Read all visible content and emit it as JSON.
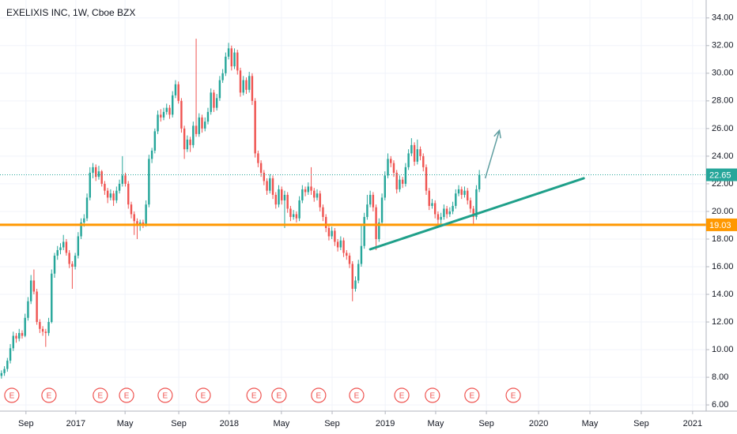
{
  "chart_data": {
    "type": "candlestick",
    "title": "EXELIXIS INC, 1W, Cboe BZX",
    "up_color": "#26a69a",
    "down_color": "#ef5350",
    "xlim": [
      0,
      239.4
    ],
    "xticks": [
      {
        "value": 8.8,
        "label": "Sep"
      },
      {
        "value": 25.7,
        "label": "2017"
      },
      {
        "value": 42.4,
        "label": "May"
      },
      {
        "value": 60.6,
        "label": "Sep"
      },
      {
        "value": 77.7,
        "label": "2018"
      },
      {
        "value": 95.4,
        "label": "May"
      },
      {
        "value": 112.6,
        "label": "Sep"
      },
      {
        "value": 130.6,
        "label": "2019"
      },
      {
        "value": 147.7,
        "label": "May"
      },
      {
        "value": 164.9,
        "label": "Sep"
      },
      {
        "value": 182.6,
        "label": "2020"
      },
      {
        "value": 200,
        "label": "May"
      },
      {
        "value": 217.4,
        "label": "Sep"
      },
      {
        "value": 234.8,
        "label": "2021"
      }
    ],
    "ylim": [
      5.55,
      35.3
    ],
    "yticks": [
      {
        "value": 6,
        "label": "6.00"
      },
      {
        "value": 8,
        "label": "8.00"
      },
      {
        "value": 10,
        "label": "10.00"
      },
      {
        "value": 12,
        "label": "12.00"
      },
      {
        "value": 14,
        "label": "14.00"
      },
      {
        "value": 16,
        "label": "16.00"
      },
      {
        "value": 18,
        "label": "18.00"
      },
      {
        "value": 20,
        "label": "20.00"
      },
      {
        "value": 22,
        "label": "22.00"
      },
      {
        "value": 24,
        "label": "24.00"
      },
      {
        "value": 26,
        "label": "26.00"
      },
      {
        "value": 28,
        "label": "28.00"
      },
      {
        "value": 30,
        "label": "30.00"
      },
      {
        "value": 32,
        "label": "32.00"
      },
      {
        "value": 34,
        "label": "34.00"
      }
    ],
    "grid": true,
    "price_lines": [
      {
        "value": 19.03,
        "color": "#ff9800",
        "style": "solid"
      },
      {
        "value": 22.65,
        "color": "#26a69a",
        "style": "dotted"
      }
    ],
    "trendline": {
      "x": [
        125.5,
        197.9
      ],
      "y": [
        17.26,
        22.4
      ],
      "color": "#1fa08a"
    },
    "arrow": {
      "x": [
        164.5,
        169.3
      ],
      "y": [
        22.4,
        25.86
      ],
      "color": "#5f9ea0"
    },
    "events": [
      {
        "x": 4.0,
        "label": "E"
      },
      {
        "x": 16.6,
        "label": "E"
      },
      {
        "x": 34.0,
        "label": "E"
      },
      {
        "x": 42.9,
        "label": "E"
      },
      {
        "x": 56.0,
        "label": "E"
      },
      {
        "x": 68.9,
        "label": "E"
      },
      {
        "x": 86.1,
        "label": "E"
      },
      {
        "x": 94.6,
        "label": "E"
      },
      {
        "x": 108.0,
        "label": "E"
      },
      {
        "x": 120.9,
        "label": "E"
      },
      {
        "x": 136.2,
        "label": "E"
      },
      {
        "x": 146.6,
        "label": "E"
      },
      {
        "x": 160.0,
        "label": "E"
      },
      {
        "x": 174.0,
        "label": "E"
      }
    ],
    "candles": [
      [
        8.1,
        8.5,
        7.9,
        8.3
      ],
      [
        8.3,
        8.8,
        8.1,
        8.6
      ],
      [
        8.6,
        9.4,
        8.4,
        9.2
      ],
      [
        9.2,
        10.4,
        9.0,
        10.1
      ],
      [
        10.1,
        11.3,
        9.9,
        11.0
      ],
      [
        11.0,
        11.2,
        10.5,
        10.8
      ],
      [
        10.8,
        11.5,
        10.6,
        11.2
      ],
      [
        11.2,
        11.4,
        10.8,
        11.0
      ],
      [
        11.0,
        12.6,
        10.9,
        12.3
      ],
      [
        12.3,
        13.8,
        12.1,
        13.5
      ],
      [
        13.5,
        15.4,
        13.3,
        15.0
      ],
      [
        15.0,
        15.8,
        14.0,
        14.2
      ],
      [
        14.2,
        14.4,
        11.8,
        12.0
      ],
      [
        12.0,
        12.2,
        11.2,
        11.5
      ],
      [
        11.5,
        11.7,
        11.0,
        11.3
      ],
      [
        11.3,
        11.5,
        10.2,
        11.2
      ],
      [
        11.2,
        12.3,
        11.0,
        12.0
      ],
      [
        12.0,
        15.8,
        11.9,
        15.5
      ],
      [
        15.5,
        17.0,
        15.2,
        16.8
      ],
      [
        16.8,
        17.5,
        16.5,
        17.2
      ],
      [
        17.2,
        17.7,
        16.9,
        17.4
      ],
      [
        17.4,
        18.3,
        17.2,
        17.8
      ],
      [
        17.8,
        18.0,
        16.8,
        17.0
      ],
      [
        17.0,
        17.2,
        15.9,
        16.2
      ],
      [
        16.2,
        16.4,
        14.4,
        16.0
      ],
      [
        16.0,
        17.0,
        15.8,
        16.8
      ],
      [
        16.8,
        18.5,
        16.6,
        18.2
      ],
      [
        18.2,
        19.5,
        18.0,
        19.2
      ],
      [
        19.2,
        19.8,
        18.9,
        19.5
      ],
      [
        19.5,
        21.3,
        19.3,
        21.0
      ],
      [
        21.0,
        23.2,
        20.8,
        22.8
      ],
      [
        22.8,
        23.5,
        22.4,
        23.2
      ],
      [
        23.2,
        23.4,
        22.2,
        22.5
      ],
      [
        22.5,
        23.3,
        22.3,
        22.9
      ],
      [
        22.9,
        23.0,
        21.8,
        22.0
      ],
      [
        22.0,
        22.2,
        21.2,
        21.5
      ],
      [
        21.5,
        21.7,
        20.6,
        21.0
      ],
      [
        21.0,
        21.6,
        20.8,
        21.3
      ],
      [
        21.3,
        21.5,
        20.4,
        20.8
      ],
      [
        20.8,
        21.8,
        20.6,
        21.5
      ],
      [
        21.5,
        22.3,
        21.3,
        22.0
      ],
      [
        22.0,
        24.0,
        21.8,
        22.6
      ],
      [
        22.6,
        22.8,
        21.8,
        22.0
      ],
      [
        22.0,
        22.2,
        20.2,
        20.5
      ],
      [
        20.5,
        20.7,
        19.5,
        19.8
      ],
      [
        19.8,
        20.0,
        18.3,
        19.3
      ],
      [
        19.3,
        19.5,
        18.0,
        19.0
      ],
      [
        19.0,
        19.4,
        18.6,
        19.2
      ],
      [
        19.2,
        19.4,
        18.8,
        19.1
      ],
      [
        19.1,
        20.8,
        18.9,
        20.5
      ],
      [
        20.5,
        24.1,
        20.3,
        23.8
      ],
      [
        23.8,
        24.6,
        23.5,
        24.4
      ],
      [
        24.4,
        26.0,
        24.2,
        25.8
      ],
      [
        25.8,
        27.3,
        25.6,
        27.0
      ],
      [
        27.0,
        27.4,
        26.5,
        26.8
      ],
      [
        26.8,
        27.5,
        26.6,
        27.2
      ],
      [
        27.2,
        27.8,
        27.0,
        27.5
      ],
      [
        27.5,
        27.7,
        26.7,
        27.0
      ],
      [
        27.0,
        28.7,
        26.8,
        28.4
      ],
      [
        28.4,
        29.5,
        28.2,
        29.2
      ],
      [
        29.2,
        29.4,
        27.8,
        28.0
      ],
      [
        28.0,
        28.2,
        25.7,
        26.0
      ],
      [
        26.0,
        26.2,
        23.8,
        24.5
      ],
      [
        24.5,
        25.5,
        24.3,
        25.2
      ],
      [
        25.2,
        25.4,
        24.3,
        24.8
      ],
      [
        24.8,
        26.5,
        24.6,
        26.2
      ],
      [
        26.2,
        32.5,
        25.4,
        25.6
      ],
      [
        25.6,
        27.1,
        25.4,
        26.8
      ],
      [
        26.8,
        27.0,
        25.7,
        26.0
      ],
      [
        26.0,
        26.8,
        25.8,
        26.5
      ],
      [
        26.5,
        27.5,
        26.3,
        27.2
      ],
      [
        27.2,
        28.9,
        27.0,
        28.6
      ],
      [
        28.6,
        28.8,
        27.2,
        27.5
      ],
      [
        27.5,
        28.5,
        27.3,
        28.2
      ],
      [
        28.2,
        29.8,
        28.0,
        29.5
      ],
      [
        29.5,
        30.3,
        29.3,
        30.0
      ],
      [
        30.0,
        31.5,
        29.8,
        31.2
      ],
      [
        31.2,
        32.2,
        31.0,
        31.8
      ],
      [
        31.8,
        32.0,
        30.2,
        30.5
      ],
      [
        30.5,
        31.8,
        30.3,
        31.5
      ],
      [
        31.5,
        31.7,
        29.9,
        30.2
      ],
      [
        30.2,
        30.4,
        28.3,
        28.6
      ],
      [
        28.6,
        29.8,
        28.4,
        29.5
      ],
      [
        29.5,
        29.7,
        28.5,
        28.8
      ],
      [
        28.8,
        30.1,
        28.6,
        29.8
      ],
      [
        29.8,
        30.0,
        27.7,
        28.0
      ],
      [
        28.0,
        28.2,
        23.9,
        24.2
      ],
      [
        24.2,
        24.4,
        23.2,
        23.5
      ],
      [
        23.5,
        23.7,
        22.5,
        22.8
      ],
      [
        22.8,
        23.0,
        21.9,
        22.2
      ],
      [
        22.2,
        22.4,
        21.2,
        21.5
      ],
      [
        21.5,
        22.7,
        21.3,
        22.4
      ],
      [
        22.4,
        22.6,
        20.9,
        21.2
      ],
      [
        21.2,
        21.4,
        20.2,
        20.5
      ],
      [
        20.5,
        21.9,
        20.3,
        21.6
      ],
      [
        21.6,
        21.8,
        20.5,
        20.8
      ],
      [
        20.8,
        21.5,
        18.8,
        21.2
      ],
      [
        21.2,
        21.4,
        19.9,
        20.2
      ],
      [
        20.2,
        20.4,
        19.3,
        19.6
      ],
      [
        19.6,
        20.1,
        19.4,
        19.8
      ],
      [
        19.8,
        20.0,
        19.2,
        19.5
      ],
      [
        19.5,
        21.1,
        19.3,
        20.8
      ],
      [
        20.8,
        21.9,
        20.6,
        21.6
      ],
      [
        21.6,
        21.8,
        21.1,
        21.4
      ],
      [
        21.4,
        22.1,
        21.2,
        21.8
      ],
      [
        21.8,
        23.2,
        21.2,
        21.5
      ],
      [
        21.5,
        21.7,
        20.7,
        21.0
      ],
      [
        21.0,
        21.6,
        20.8,
        21.3
      ],
      [
        21.3,
        21.5,
        20.0,
        20.3
      ],
      [
        20.3,
        20.5,
        19.3,
        19.6
      ],
      [
        19.6,
        19.8,
        18.5,
        18.8
      ],
      [
        18.8,
        19.0,
        17.9,
        18.2
      ],
      [
        18.2,
        18.9,
        18.0,
        18.6
      ],
      [
        18.6,
        18.8,
        17.5,
        17.8
      ],
      [
        17.8,
        18.0,
        17.1,
        17.4
      ],
      [
        17.4,
        18.2,
        17.2,
        17.9
      ],
      [
        17.9,
        18.1,
        16.7,
        17.0
      ],
      [
        17.0,
        17.2,
        16.5,
        16.8
      ],
      [
        16.8,
        17.0,
        15.9,
        16.2
      ],
      [
        16.2,
        16.4,
        13.5,
        14.4
      ],
      [
        14.4,
        15.3,
        14.2,
        15.0
      ],
      [
        15.0,
        16.5,
        14.8,
        16.2
      ],
      [
        16.2,
        19.0,
        16.0,
        17.5
      ],
      [
        17.5,
        19.9,
        17.3,
        19.6
      ],
      [
        19.6,
        21.2,
        19.4,
        20.5
      ],
      [
        20.5,
        21.5,
        20.3,
        21.2
      ],
      [
        21.2,
        21.4,
        20.0,
        20.3
      ],
      [
        20.3,
        20.5,
        17.2,
        18.0
      ],
      [
        18.0,
        19.5,
        17.8,
        19.2
      ],
      [
        19.2,
        21.3,
        19.0,
        21.0
      ],
      [
        21.0,
        22.9,
        20.8,
        22.6
      ],
      [
        22.6,
        24.2,
        22.4,
        23.8
      ],
      [
        23.8,
        24.0,
        23.2,
        23.5
      ],
      [
        23.5,
        23.7,
        22.5,
        22.8
      ],
      [
        22.8,
        23.0,
        21.3,
        21.6
      ],
      [
        21.6,
        22.6,
        21.4,
        22.3
      ],
      [
        22.3,
        22.5,
        21.7,
        22.0
      ],
      [
        22.0,
        23.5,
        21.8,
        23.2
      ],
      [
        23.2,
        24.5,
        23.0,
        24.2
      ],
      [
        24.2,
        25.3,
        24.0,
        24.8
      ],
      [
        24.8,
        25.0,
        23.3,
        23.6
      ],
      [
        23.6,
        25.2,
        23.4,
        24.5
      ],
      [
        24.5,
        24.7,
        23.7,
        24.0
      ],
      [
        24.0,
        24.2,
        22.9,
        23.2
      ],
      [
        23.2,
        23.4,
        21.2,
        21.5
      ],
      [
        21.5,
        21.7,
        20.1,
        20.4
      ],
      [
        20.4,
        20.9,
        20.2,
        20.6
      ],
      [
        20.6,
        20.8,
        19.5,
        19.8
      ],
      [
        19.8,
        20.0,
        19.1,
        19.4
      ],
      [
        19.4,
        19.9,
        19.0,
        19.6
      ],
      [
        19.6,
        20.5,
        19.4,
        20.2
      ],
      [
        20.2,
        20.4,
        19.5,
        19.8
      ],
      [
        19.8,
        20.3,
        19.6,
        20.0
      ],
      [
        20.0,
        20.7,
        19.8,
        20.4
      ],
      [
        20.4,
        21.6,
        20.2,
        21.3
      ],
      [
        21.3,
        21.9,
        21.1,
        21.6
      ],
      [
        21.6,
        21.8,
        20.9,
        21.2
      ],
      [
        21.2,
        21.8,
        21.0,
        21.5
      ],
      [
        21.5,
        21.7,
        20.5,
        20.8
      ],
      [
        20.8,
        21.0,
        19.9,
        20.2
      ],
      [
        20.2,
        20.4,
        19.1,
        19.6
      ],
      [
        19.6,
        21.9,
        19.4,
        21.6
      ],
      [
        21.6,
        23.0,
        21.4,
        22.65
      ]
    ]
  }
}
